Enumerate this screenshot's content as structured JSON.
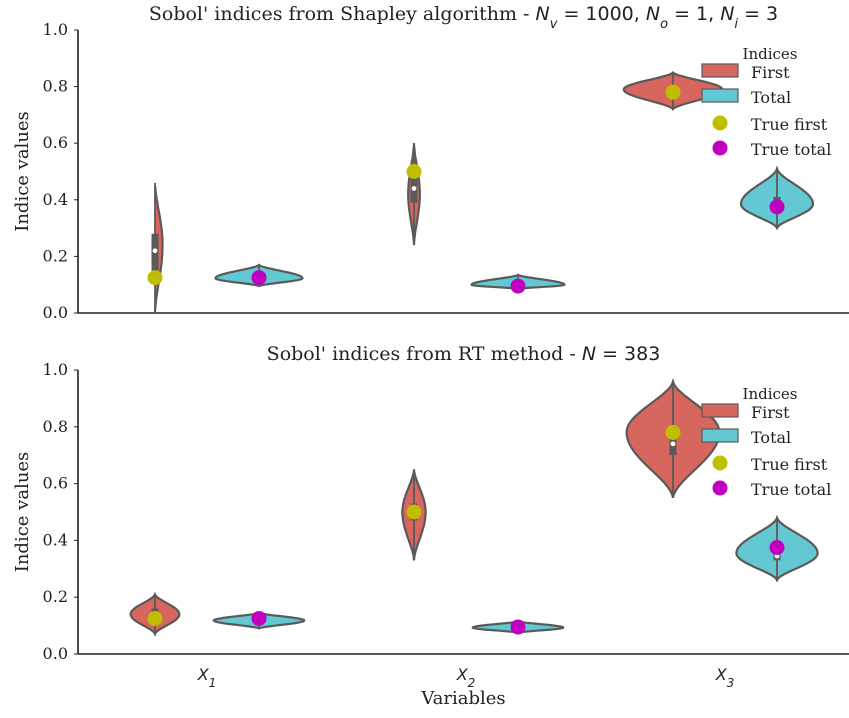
{
  "chart_data": [
    {
      "type": "violin",
      "title": "Sobol' indices from Shapley algorithm - ",
      "title_math": "N_v = 1000, N_o = 1, N_i = 3",
      "title_math_display": [
        {
          "t": "N",
          "sub": "v",
          "rest": " = 1000, "
        },
        {
          "t": "N",
          "sub": "o",
          "rest": " = 1, "
        },
        {
          "t": "N",
          "sub": "i",
          "rest": " = 3"
        }
      ],
      "ylabel": "Indice values",
      "xlabel": "",
      "ylim": [
        0.0,
        1.0
      ],
      "yticks": [
        "0.0",
        "0.2",
        "0.4",
        "0.6",
        "0.8",
        "1.0"
      ],
      "categories": [
        "X1",
        "X2",
        "X3"
      ],
      "legend": {
        "title": "Indices",
        "position": "top-right",
        "entries": [
          "First",
          "Total",
          "True first",
          "True total"
        ]
      },
      "colors": {
        "First": "#d7665e",
        "Total": "#64c8d2",
        "True first": "#bfbf00",
        "True total": "#bf00bf",
        "edge": "#5a5a5a"
      },
      "series": [
        {
          "name": "First",
          "distributions": [
            {
              "min": 0.0,
              "max": 0.46,
              "q1": 0.15,
              "median": 0.22,
              "q3": 0.28,
              "mode": 0.24,
              "width": 0.13
            },
            {
              "min": 0.24,
              "max": 0.6,
              "q1": 0.39,
              "median": 0.44,
              "q3": 0.48,
              "mode": 0.42,
              "width": 0.1
            },
            {
              "min": 0.72,
              "max": 0.85,
              "q1": 0.77,
              "median": 0.79,
              "q3": 0.8,
              "mode": 0.79,
              "width": 0.85
            }
          ]
        },
        {
          "name": "Total",
          "distributions": [
            {
              "min": 0.095,
              "max": 0.17,
              "q1": 0.115,
              "median": 0.123,
              "q3": 0.13,
              "mode": 0.123,
              "width": 0.75
            },
            {
              "min": 0.085,
              "max": 0.135,
              "q1": 0.097,
              "median": 0.1,
              "q3": 0.105,
              "mode": 0.1,
              "width": 0.8
            },
            {
              "min": 0.3,
              "max": 0.51,
              "q1": 0.37,
              "median": 0.39,
              "q3": 0.41,
              "mode": 0.385,
              "width": 0.62
            }
          ]
        }
      ],
      "true_values": {
        "True first": [
          0.125,
          0.5,
          0.78
        ],
        "True total": [
          0.125,
          0.095,
          0.375
        ]
      }
    },
    {
      "type": "violin",
      "title": "Sobol' indices from RT method - ",
      "title_math": "N = 383",
      "title_math_display": [
        {
          "t": "N",
          "sub": "",
          "rest": " = 383"
        }
      ],
      "ylabel": "Indice values",
      "xlabel": "Variables",
      "ylim": [
        0.0,
        1.0
      ],
      "yticks": [
        "0.0",
        "0.2",
        "0.4",
        "0.6",
        "0.8",
        "1.0"
      ],
      "categories": [
        "X1",
        "X2",
        "X3"
      ],
      "legend": {
        "title": "Indices",
        "position": "top-right",
        "entries": [
          "First",
          "Total",
          "True first",
          "True total"
        ]
      },
      "colors": {
        "First": "#d7665e",
        "Total": "#64c8d2",
        "True first": "#bfbf00",
        "True total": "#bf00bf",
        "edge": "#5a5a5a"
      },
      "series": [
        {
          "name": "First",
          "distributions": [
            {
              "min": 0.07,
              "max": 0.21,
              "q1": 0.125,
              "median": 0.14,
              "q3": 0.16,
              "mode": 0.14,
              "width": 0.42
            },
            {
              "min": 0.33,
              "max": 0.65,
              "q1": 0.47,
              "median": 0.5,
              "q3": 0.53,
              "mode": 0.5,
              "width": 0.2
            },
            {
              "min": 0.55,
              "max": 0.96,
              "q1": 0.7,
              "median": 0.74,
              "q3": 0.8,
              "mode": 0.78,
              "width": 0.8
            }
          ]
        },
        {
          "name": "Total",
          "distributions": [
            {
              "min": 0.09,
              "max": 0.145,
              "q1": 0.11,
              "median": 0.118,
              "q3": 0.125,
              "mode": 0.118,
              "width": 0.78
            },
            {
              "min": 0.075,
              "max": 0.115,
              "q1": 0.088,
              "median": 0.093,
              "q3": 0.098,
              "mode": 0.093,
              "width": 0.78
            },
            {
              "min": 0.26,
              "max": 0.48,
              "q1": 0.33,
              "median": 0.345,
              "q3": 0.37,
              "mode": 0.355,
              "width": 0.7
            }
          ]
        }
      ],
      "true_values": {
        "True first": [
          0.125,
          0.5,
          0.78
        ],
        "True total": [
          0.125,
          0.095,
          0.375
        ]
      }
    }
  ],
  "x_tick_labels": [
    {
      "t": "X",
      "sub": "1"
    },
    {
      "t": "X",
      "sub": "2"
    },
    {
      "t": "X",
      "sub": "3"
    }
  ]
}
